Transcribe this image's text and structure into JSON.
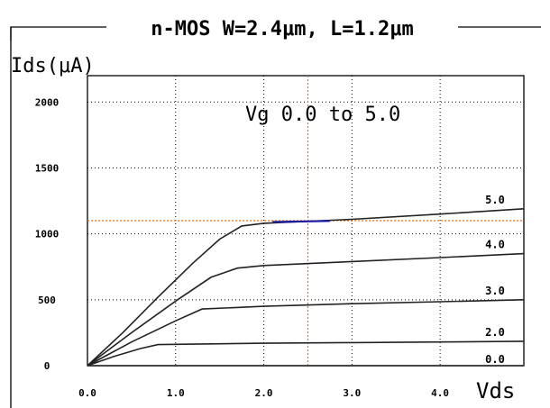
{
  "chart_data": {
    "type": "line",
    "title": "n-MOS W=2.4μm, L=1.2μm",
    "ylabel": "Ids(μA)",
    "xlabel": "Vds",
    "annotation": "Vg 0.0 to 5.0",
    "xlim": [
      0.0,
      4.95
    ],
    "ylim": [
      0,
      2200
    ],
    "x_ticks": [
      0.0,
      1.0,
      2.0,
      3.0,
      4.0
    ],
    "x_tick_labels": [
      "0.0",
      "1.0",
      "2.0",
      "3.0",
      "4.0"
    ],
    "y_ticks": [
      0,
      500,
      1000,
      1500,
      2000
    ],
    "y_tick_labels": [
      "0",
      "500",
      "1000",
      "1500",
      "2000"
    ],
    "grid": true,
    "series": [
      {
        "name": "0.0",
        "x": [
          0.0,
          4.95
        ],
        "y": [
          0,
          0
        ]
      },
      {
        "name": "2.0",
        "x": [
          0.0,
          0.3,
          0.6,
          0.8,
          2.0,
          3.0,
          4.0,
          4.95
        ],
        "y": [
          0,
          70,
          130,
          160,
          170,
          175,
          180,
          185
        ]
      },
      {
        "name": "3.0",
        "x": [
          0.0,
          0.5,
          1.0,
          1.3,
          2.0,
          3.0,
          4.0,
          4.95
        ],
        "y": [
          0,
          180,
          340,
          430,
          450,
          470,
          485,
          500
        ]
      },
      {
        "name": "4.0",
        "x": [
          0.0,
          0.5,
          1.0,
          1.4,
          1.7,
          2.0,
          3.0,
          4.0,
          4.95
        ],
        "y": [
          0,
          250,
          490,
          670,
          740,
          760,
          790,
          820,
          850
        ]
      },
      {
        "name": "5.0",
        "x": [
          0.0,
          0.4,
          0.8,
          1.2,
          1.5,
          1.75,
          2.0,
          3.0,
          4.0,
          4.95
        ],
        "y": [
          0,
          250,
          520,
          780,
          960,
          1060,
          1080,
          1110,
          1150,
          1190
        ]
      }
    ],
    "curve_labels": [
      "5.0",
      "4.0",
      "3.0",
      "2.0",
      "0.0"
    ],
    "cursor": {
      "x": 2.5,
      "y": 1100
    },
    "colors": {
      "curve": "#222222",
      "cursor": "#ff6a00",
      "operating_point": "#1a1aa6"
    }
  }
}
